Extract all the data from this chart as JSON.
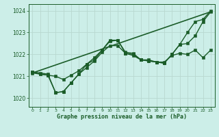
{
  "background_color": "#cceee8",
  "grid_color": "#b8d8d0",
  "line_color": "#1a5c28",
  "marker_color": "#1a5c28",
  "xlabel": "Graphe pression niveau de la mer (hPa)",
  "ylim": [
    1019.6,
    1024.3
  ],
  "xlim": [
    -0.5,
    23.5
  ],
  "yticks": [
    1020,
    1021,
    1022,
    1023,
    1024
  ],
  "xticks": [
    0,
    1,
    2,
    3,
    4,
    5,
    6,
    7,
    8,
    9,
    10,
    11,
    12,
    13,
    14,
    15,
    16,
    17,
    18,
    19,
    20,
    21,
    22,
    23
  ],
  "series": [
    {
      "x": [
        0,
        1,
        2,
        3,
        4,
        5,
        6,
        7,
        8,
        9,
        10,
        11,
        12,
        13,
        14,
        15,
        16,
        17,
        18,
        19,
        20,
        21,
        22,
        23
      ],
      "y": [
        1021.15,
        1021.1,
        1021.05,
        1021.0,
        1020.85,
        1021.05,
        1021.25,
        1021.55,
        1021.75,
        1022.2,
        1022.65,
        1022.65,
        1022.1,
        1022.05,
        1021.75,
        1021.75,
        1021.65,
        1021.65,
        1021.95,
        1022.05,
        1022.0,
        1022.2,
        1021.85,
        1022.2
      ],
      "marker": "s",
      "markersize": 2.5,
      "linewidth": 1.0
    },
    {
      "x": [
        0,
        1,
        2,
        3,
        4,
        5,
        6,
        7,
        8,
        9,
        10,
        11,
        12,
        13,
        14,
        15,
        16,
        17,
        18,
        19,
        20,
        21,
        22,
        23
      ],
      "y": [
        1021.2,
        1021.15,
        1021.1,
        1020.25,
        1020.3,
        1020.7,
        1021.1,
        1021.4,
        1021.7,
        1022.1,
        1022.4,
        1022.4,
        1022.05,
        1021.95,
        1021.75,
        1021.7,
        1021.65,
        1021.6,
        1022.0,
        1022.45,
        1023.0,
        1023.5,
        1023.6,
        1024.0
      ],
      "marker": "s",
      "markersize": 2.5,
      "linewidth": 1.0
    },
    {
      "x": [
        0,
        23
      ],
      "y": [
        1021.15,
        1023.95
      ],
      "marker": null,
      "markersize": 0,
      "linewidth": 1.2
    },
    {
      "x": [
        0,
        1,
        2,
        3,
        4,
        5,
        6,
        7,
        8,
        9,
        10,
        11,
        12,
        13,
        14,
        15,
        16,
        17,
        18,
        19,
        20,
        21,
        22,
        23
      ],
      "y": [
        1021.2,
        1021.1,
        1021.05,
        1020.25,
        1020.3,
        1020.7,
        1021.1,
        1021.55,
        1021.85,
        1022.2,
        1022.6,
        1022.65,
        1022.05,
        1022.0,
        1021.75,
        1021.7,
        1021.65,
        1021.6,
        1022.0,
        1022.45,
        1022.5,
        1022.85,
        1023.5,
        1023.95
      ],
      "marker": "s",
      "markersize": 2.5,
      "linewidth": 1.0
    }
  ]
}
